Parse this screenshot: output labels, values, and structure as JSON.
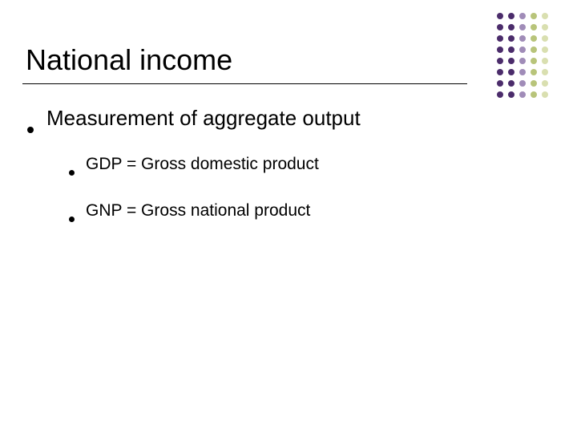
{
  "slide": {
    "title": "National income",
    "bullets": {
      "level1": {
        "text": "Measurement of aggregate output"
      },
      "level2": [
        {
          "text": "GDP = Gross domestic product"
        },
        {
          "text": "GNP = Gross national product"
        }
      ]
    }
  },
  "decoration": {
    "type": "dot-grid",
    "cols": 5,
    "rows": 8,
    "dot_radius": 4,
    "col_spacing": 14,
    "row_spacing": 14,
    "col_colors": [
      "#4b2c6b",
      "#4b2c6b",
      "#a08cb8",
      "#b8c47a",
      "#d9dfb0"
    ],
    "background": "#ffffff"
  },
  "style": {
    "title_fontsize": 36,
    "l1_fontsize": 26,
    "l2_fontsize": 21,
    "text_color": "#000000",
    "bullet_color": "#000000",
    "rule_color": "#000000"
  }
}
